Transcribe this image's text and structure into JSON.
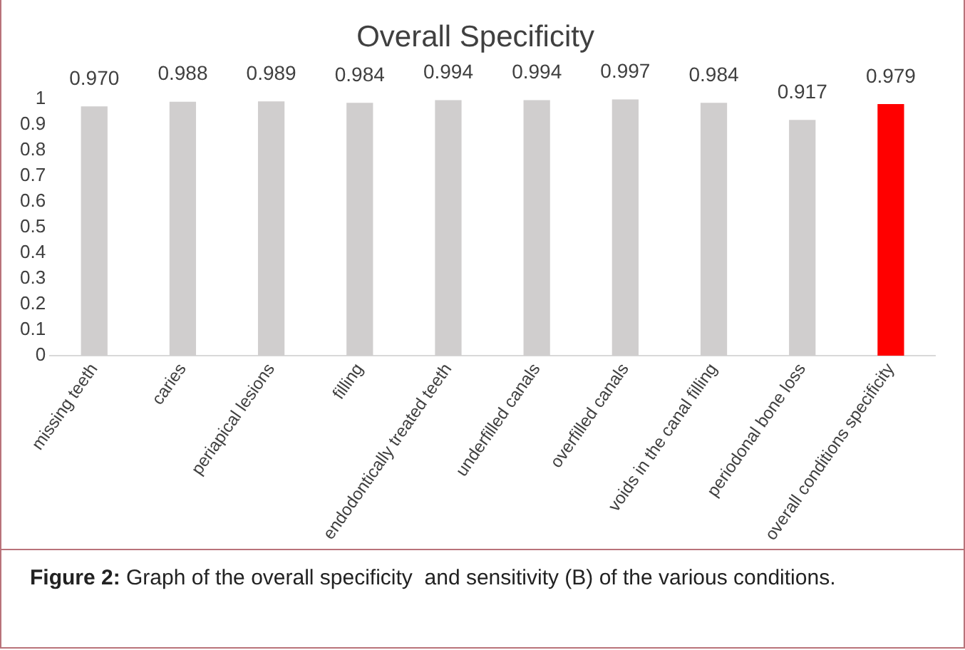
{
  "chart_data": {
    "type": "bar",
    "title": "Overall Specificity",
    "categories": [
      "missing teeth",
      "caries",
      "periapical lesions",
      "filling",
      "endodontically treated teeth",
      "underfilled canals",
      "overfilled canals",
      "voids in the canal filling",
      "periodonal bone loss",
      "overall conditions specificity"
    ],
    "values": [
      0.97,
      0.988,
      0.989,
      0.984,
      0.994,
      0.994,
      0.997,
      0.984,
      0.917,
      0.979
    ],
    "value_labels": [
      "0.970",
      "0.988",
      "0.989",
      "0.984",
      "0.994",
      "0.994",
      "0.997",
      "0.984",
      "0.917",
      "0.979"
    ],
    "colors": [
      "#d0cece",
      "#d0cece",
      "#d0cece",
      "#d0cece",
      "#d0cece",
      "#d0cece",
      "#d0cece",
      "#d0cece",
      "#d0cece",
      "#ff0000"
    ],
    "ylim": [
      0,
      1
    ],
    "yticks": [
      0,
      0.1,
      0.2,
      0.3,
      0.4,
      0.5,
      0.6,
      0.7,
      0.8,
      0.9,
      1
    ],
    "grid": false,
    "legend": false,
    "annotations": [
      "Figure 2: Graph of the overall specificity  and sensitivity (B) of the various conditions."
    ]
  }
}
